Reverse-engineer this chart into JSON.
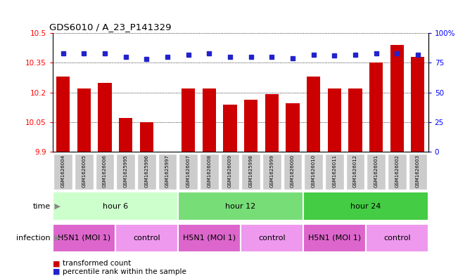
{
  "title": "GDS6010 / A_23_P141329",
  "samples": [
    "GSM1626004",
    "GSM1626005",
    "GSM1626006",
    "GSM1625995",
    "GSM1625996",
    "GSM1625997",
    "GSM1626007",
    "GSM1626008",
    "GSM1626009",
    "GSM1625998",
    "GSM1625999",
    "GSM1626000",
    "GSM1626010",
    "GSM1626011",
    "GSM1626012",
    "GSM1626001",
    "GSM1626002",
    "GSM1626003"
  ],
  "transformed_counts": [
    10.28,
    10.22,
    10.25,
    10.07,
    10.05,
    9.9,
    10.22,
    10.22,
    10.14,
    10.165,
    10.19,
    10.145,
    10.28,
    10.22,
    10.22,
    10.35,
    10.44,
    10.38
  ],
  "percentile_ranks": [
    83,
    83,
    83,
    80,
    78,
    80,
    82,
    83,
    80,
    80,
    80,
    79,
    82,
    81,
    82,
    83,
    83,
    82
  ],
  "bar_color": "#cc0000",
  "dot_color": "#2222cc",
  "y_min": 9.9,
  "y_max": 10.5,
  "y_ticks": [
    9.9,
    10.05,
    10.2,
    10.35,
    10.5
  ],
  "y_tick_labels": [
    "9.9",
    "10.05",
    "10.2",
    "10.35",
    "10.5"
  ],
  "y2_ticks": [
    0,
    25,
    50,
    75,
    100
  ],
  "y2_tick_labels": [
    "0",
    "25",
    "50",
    "75",
    "100%"
  ],
  "time_groups": [
    {
      "label": "hour 6",
      "start": 0,
      "end": 6,
      "color": "#ccffcc"
    },
    {
      "label": "hour 12",
      "start": 6,
      "end": 12,
      "color": "#77dd77"
    },
    {
      "label": "hour 24",
      "start": 12,
      "end": 18,
      "color": "#44cc44"
    }
  ],
  "infection_groups": [
    {
      "label": "H5N1 (MOI 1)",
      "start": 0,
      "end": 3,
      "color": "#dd66cc"
    },
    {
      "label": "control",
      "start": 3,
      "end": 6,
      "color": "#ee99ee"
    },
    {
      "label": "H5N1 (MOI 1)",
      "start": 6,
      "end": 9,
      "color": "#dd66cc"
    },
    {
      "label": "control",
      "start": 9,
      "end": 12,
      "color": "#ee99ee"
    },
    {
      "label": "H5N1 (MOI 1)",
      "start": 12,
      "end": 15,
      "color": "#dd66cc"
    },
    {
      "label": "control",
      "start": 15,
      "end": 18,
      "color": "#ee99ee"
    }
  ],
  "time_label": "time",
  "infection_label": "infection",
  "legend_bar_label": "transformed count",
  "legend_dot_label": "percentile rank within the sample",
  "sample_bg_color": "#cccccc"
}
